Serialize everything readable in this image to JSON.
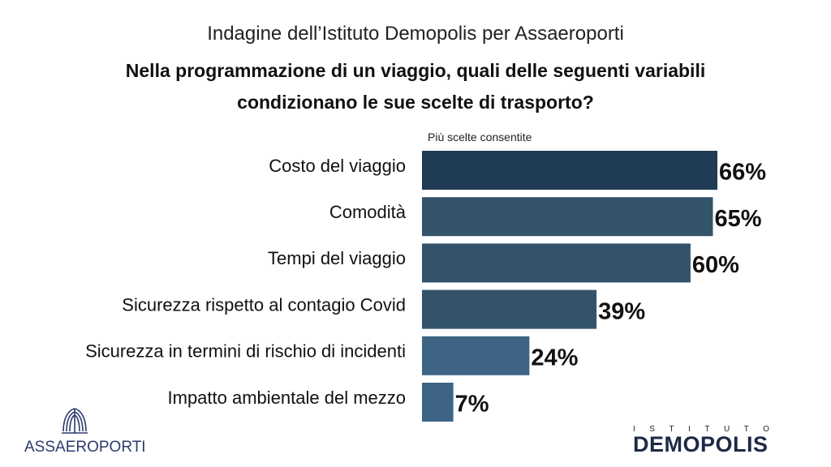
{
  "header": {
    "supertitle": "Indagine dell’Istituto Demopolis per Assaeroporti",
    "title": "Nella programmazione di un viaggio, quali delle seguenti variabili condizionano le sue scelte di trasporto?",
    "note": "Più scelte consentite"
  },
  "chart_data": {
    "type": "bar",
    "orientation": "horizontal",
    "categories": [
      "Costo del viaggio",
      "Comodità",
      "Tempi del viaggio",
      "Sicurezza rispetto al contagio Covid",
      "Sicurezza in termini di rischio di incidenti",
      "Impatto ambientale del mezzo"
    ],
    "values": [
      66,
      65,
      60,
      39,
      24,
      7
    ],
    "value_labels": [
      "66%",
      "65%",
      "60%",
      "39%",
      "24%",
      "7%"
    ],
    "colors": [
      "#1f3b55",
      "#33536b",
      "#33536b",
      "#33536b",
      "#3d6485",
      "#3d6485"
    ],
    "xlim": [
      0,
      66
    ],
    "grid": false,
    "legend": "none"
  },
  "logos": {
    "left_text": "ASSAEROPORTI",
    "right_small": "ISTITUTO",
    "right_big": "DEMOPOLIS",
    "left_color": "#2e3a6e",
    "right_color": "#1e2a45",
    "right_accent": "#e8892b"
  }
}
